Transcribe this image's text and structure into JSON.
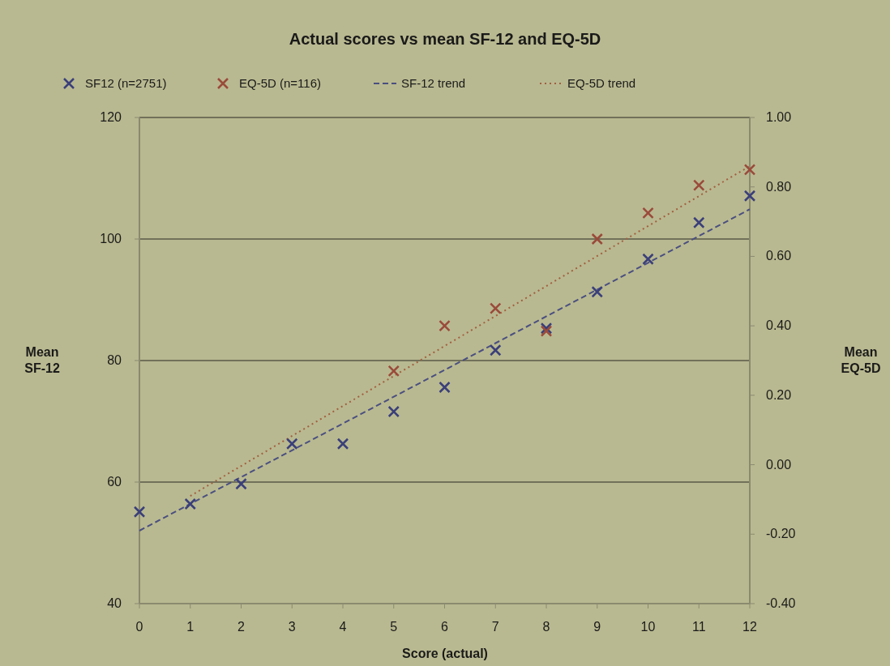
{
  "chart_data": {
    "type": "scatter",
    "title": "Actual scores vs mean SF-12 and EQ-5D",
    "xlabel": "Score (actual)",
    "ylabel": "Mean SF-12",
    "y2label": "Mean EQ-5D",
    "xlim": [
      0,
      12
    ],
    "xticks": [
      0,
      1,
      2,
      3,
      4,
      5,
      6,
      7,
      8,
      9,
      10,
      11,
      12
    ],
    "ylim": [
      40,
      120
    ],
    "yticks": [
      40,
      60,
      80,
      100,
      120
    ],
    "y2lim": [
      -0.4,
      1.0
    ],
    "y2ticks": [
      {
        "value": -0.4,
        "label": "-0.40"
      },
      {
        "value": -0.2,
        "label": "-0.20"
      },
      {
        "value": 0,
        "label": "0.00"
      },
      {
        "value": 0.2,
        "label": "0.20"
      },
      {
        "value": 0.4,
        "label": "0.40"
      },
      {
        "value": 0.6,
        "label": "0.60"
      },
      {
        "value": 0.8,
        "label": "0.80"
      },
      {
        "value": 1.0,
        "label": "1.00"
      }
    ],
    "grid": "y",
    "legend": "top",
    "series": [
      {
        "name": "SF12 (n=2751)",
        "marker": "cross",
        "color": "#3a3f7a",
        "x": [
          0,
          1,
          2,
          3,
          4,
          5,
          6,
          7,
          8,
          9,
          10,
          11,
          12
        ],
        "values": [
          55.1,
          56.4,
          59.7,
          66.3,
          66.3,
          71.6,
          75.6,
          81.7,
          85.3,
          91.3,
          96.7,
          102.7,
          107.1
        ]
      },
      {
        "name": "EQ-5D (n=116)",
        "marker": "cross",
        "color": "#9a4a3a",
        "axis": "y2",
        "x": [
          5,
          6,
          7,
          8,
          9,
          10,
          11,
          12
        ],
        "values": [
          0.27,
          0.4,
          0.45,
          0.385,
          0.65,
          0.725,
          0.805,
          0.85
        ]
      },
      {
        "name": "SF-12 trend",
        "type": "line",
        "marker": "none",
        "color": "#4a4f80",
        "line_style": "dashed",
        "x": [
          0,
          12
        ],
        "values": [
          52,
          104.9
        ]
      },
      {
        "name": "EQ-5D trend",
        "type": "line",
        "marker": "none",
        "color": "#a06040",
        "line_style": "dotted",
        "axis": "y2",
        "x": [
          1,
          12
        ],
        "values": [
          -0.09,
          0.86
        ]
      }
    ]
  }
}
